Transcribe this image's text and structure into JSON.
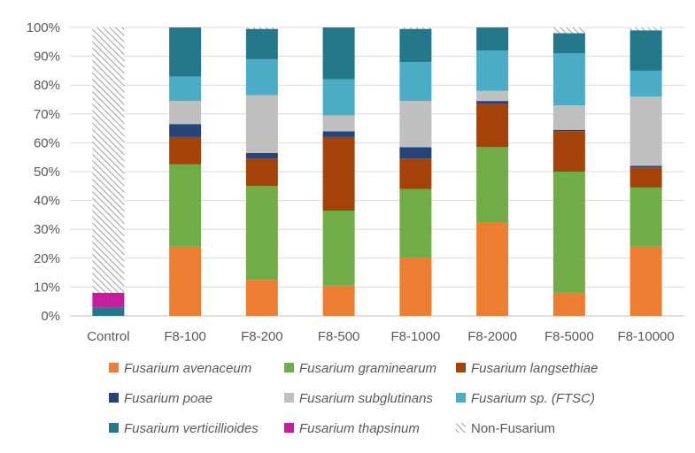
{
  "chart_data": {
    "type": "bar",
    "stacked": true,
    "categories": [
      "Control",
      "F8-100",
      "F8-200",
      "F8-500",
      "F8-1000",
      "F8-2000",
      "F8-5000",
      "F8-10000"
    ],
    "ylim": [
      0,
      100
    ],
    "yticks": [
      "0%",
      "10%",
      "20%",
      "30%",
      "40%",
      "50%",
      "60%",
      "70%",
      "80%",
      "90%",
      "100%"
    ],
    "grid": true,
    "legend_position": "bottom",
    "series": [
      {
        "name": "Fusarium avenaceum",
        "color": "#ED7D31",
        "pattern": "solid",
        "values": [
          0,
          24,
          12.5,
          10.5,
          20,
          32.5,
          8,
          24
        ]
      },
      {
        "name": "Fusarium graminearum",
        "color": "#70AD47",
        "pattern": "solid",
        "values": [
          0,
          28.5,
          32.5,
          26,
          24,
          26,
          42,
          20.5
        ]
      },
      {
        "name": "Fusarium langsethiae",
        "color": "#A5420A",
        "pattern": "solid",
        "values": [
          0,
          9.5,
          9.5,
          25.5,
          10.5,
          15,
          14,
          7
        ]
      },
      {
        "name": "Fusarium poae",
        "color": "#264478",
        "pattern": "solid",
        "values": [
          0,
          4.5,
          2,
          2,
          4,
          1,
          0.5,
          0.5
        ]
      },
      {
        "name": "Fusarium subglutinans",
        "color": "#BFBFBF",
        "pattern": "solid",
        "values": [
          0,
          8,
          20,
          5.5,
          16,
          3.5,
          8.5,
          24
        ]
      },
      {
        "name": "Fusarium sp. (FTSC)",
        "color": "#4BACC6",
        "pattern": "solid",
        "values": [
          0,
          8.5,
          12.5,
          12.5,
          13.5,
          14,
          18,
          9
        ]
      },
      {
        "name": "Fusarium verticillioides",
        "color": "#23798A",
        "pattern": "solid",
        "values": [
          3,
          17,
          10.5,
          18,
          11.5,
          8,
          7,
          14
        ]
      },
      {
        "name": "Fusarium thapsinum",
        "color": "#C71CA0",
        "pattern": "solid",
        "values": [
          5,
          0,
          0,
          0,
          0,
          0,
          0,
          0
        ]
      },
      {
        "name": "Non-Fusarium",
        "color": "#BFBFBF",
        "pattern": "hatch",
        "values": [
          92,
          0,
          0.5,
          0,
          0.5,
          0,
          2,
          1
        ]
      }
    ]
  }
}
